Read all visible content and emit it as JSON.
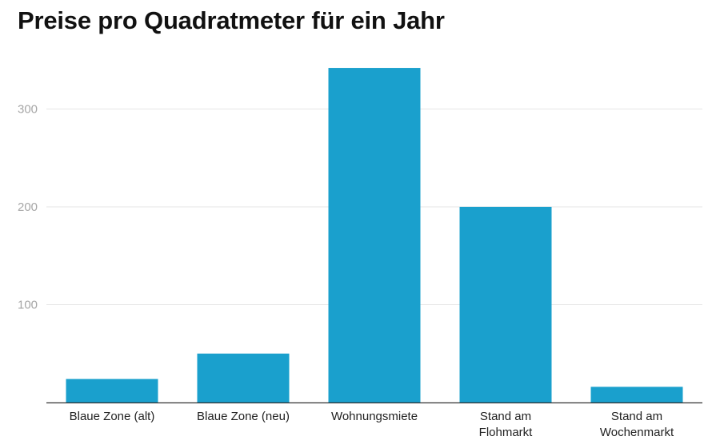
{
  "chart_data": {
    "type": "bar",
    "title": "Preise pro Quadratmeter für ein Jahr",
    "categories": [
      [
        "Blaue Zone (alt)"
      ],
      [
        "Blaue Zone (neu)"
      ],
      [
        "Wohnungsmiete"
      ],
      [
        "Stand am",
        "Flohmarkt"
      ],
      [
        "Stand am",
        "Wochenmarkt"
      ]
    ],
    "values": [
      24,
      50,
      342,
      200,
      16
    ],
    "yticks": [
      100,
      200,
      300
    ],
    "ylim": [
      0,
      360
    ],
    "grid": true,
    "legend": "none",
    "colors": {
      "bar": "#1aa0cd",
      "grid": "#e6e6e6",
      "axis": "#333333"
    }
  }
}
